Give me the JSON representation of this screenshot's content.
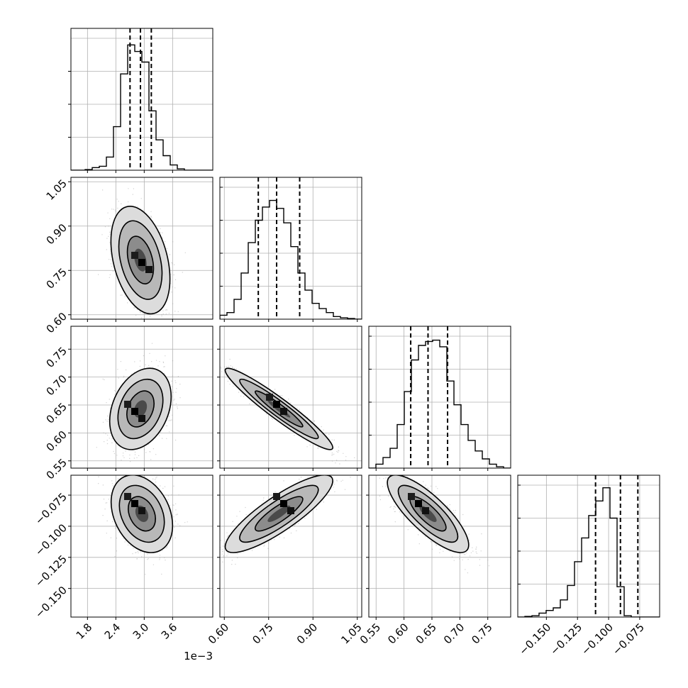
{
  "chart_data": {
    "type": "corner",
    "grid": true,
    "quantile_lines": "dashed",
    "parameters": [
      {
        "range": [
          1.45,
          4.45
        ],
        "ticks": [
          1.8,
          2.4,
          3.0,
          3.6
        ],
        "tick_labels": [
          "1.8",
          "2.4",
          "3.0",
          "3.6"
        ],
        "offset_label": "1e−3",
        "hist_lo": 1.45,
        "hist_step": 0.15,
        "hist": [
          0.0,
          0.0,
          0.005,
          0.02,
          0.03,
          0.1,
          0.33,
          0.73,
          0.95,
          0.9,
          0.82,
          0.45,
          0.23,
          0.11,
          0.04,
          0.01,
          0.0,
          0.0,
          0.0,
          0.0
        ],
        "quantiles": [
          2.7,
          2.92,
          3.15
        ]
      },
      {
        "range": [
          0.585,
          1.065
        ],
        "ticks": [
          0.6,
          0.75,
          0.9,
          1.05
        ],
        "tick_labels": [
          "0.60",
          "0.75",
          "0.90",
          "1.05"
        ],
        "hist_lo": 0.585,
        "hist_step": 0.024,
        "hist": [
          0.03,
          0.05,
          0.15,
          0.35,
          0.58,
          0.75,
          0.85,
          0.9,
          0.84,
          0.73,
          0.55,
          0.35,
          0.22,
          0.12,
          0.08,
          0.05,
          0.02,
          0.01,
          0.005,
          0.0
        ],
        "quantiles": [
          0.715,
          0.777,
          0.855
        ]
      },
      {
        "range": [
          0.537,
          0.791
        ],
        "ticks": [
          0.55,
          0.6,
          0.65,
          0.7,
          0.75
        ],
        "tick_labels": [
          "0.55",
          "0.60",
          "0.65",
          "0.70",
          "0.75"
        ],
        "hist_lo": 0.537,
        "hist_step": 0.0127,
        "hist": [
          0.0,
          0.03,
          0.08,
          0.15,
          0.33,
          0.58,
          0.82,
          0.93,
          0.96,
          0.97,
          0.92,
          0.66,
          0.48,
          0.33,
          0.21,
          0.13,
          0.07,
          0.03,
          0.01,
          0.0
        ],
        "quantiles": [
          0.612,
          0.643,
          0.678
        ]
      },
      {
        "range": [
          -0.173,
          -0.059
        ],
        "ticks": [
          -0.15,
          -0.125,
          -0.1,
          -0.075
        ],
        "tick_labels": [
          "−0.150",
          "−0.125",
          "−0.100",
          "−0.075"
        ],
        "hist_lo": -0.173,
        "hist_step": 0.0057,
        "hist": [
          0.0,
          0.005,
          0.01,
          0.03,
          0.05,
          0.07,
          0.13,
          0.24,
          0.42,
          0.6,
          0.77,
          0.88,
          0.98,
          0.75,
          0.23,
          0.01,
          0.0,
          0.0,
          0.0,
          0.0
        ],
        "quantiles": [
          -0.1105,
          -0.0905,
          -0.0765
        ]
      }
    ],
    "pairs": [
      {
        "row": 1,
        "col": 0,
        "mean": [
          2.92,
          0.785
        ],
        "sd": [
          0.24,
          0.07
        ],
        "corr": -0.35,
        "peak": [
          2.95,
          0.77
        ]
      },
      {
        "row": 2,
        "col": 0,
        "mean": [
          2.92,
          0.643
        ],
        "sd": [
          0.25,
          0.028
        ],
        "corr": 0.3,
        "peak": [
          2.85,
          0.64
        ]
      },
      {
        "row": 2,
        "col": 1,
        "mean": [
          0.785,
          0.643
        ],
        "sd": [
          0.07,
          0.028
        ],
        "corr": -0.95,
        "peak": [
          0.77,
          0.65
        ]
      },
      {
        "row": 3,
        "col": 0,
        "mean": [
          2.95,
          -0.09
        ],
        "sd": [
          0.25,
          0.012
        ],
        "corr": -0.3,
        "peak": [
          2.75,
          -0.08
        ]
      },
      {
        "row": 3,
        "col": 1,
        "mean": [
          0.785,
          -0.09
        ],
        "sd": [
          0.07,
          0.012
        ],
        "corr": 0.85,
        "peak": [
          0.8,
          -0.08
        ]
      },
      {
        "row": 3,
        "col": 2,
        "mean": [
          0.643,
          -0.09
        ],
        "sd": [
          0.028,
          0.012
        ],
        "corr": -0.8,
        "peak": [
          0.63,
          -0.08
        ]
      }
    ]
  }
}
